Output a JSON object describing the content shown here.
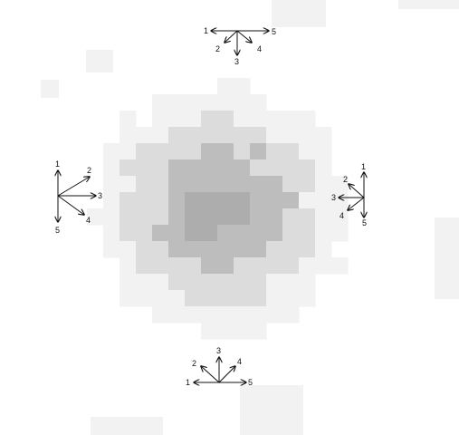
{
  "colors": {
    "arrow": "#111111",
    "blob_light": "#f2f2f2",
    "blob_mid": "#dcdcdc",
    "blob_dark": "#bdbdbd",
    "blob_core": "#adadad"
  },
  "arrow_groups": [
    {
      "id": "top",
      "arrows": [
        {
          "label": "1"
        },
        {
          "label": "2"
        },
        {
          "label": "3"
        },
        {
          "label": "4"
        },
        {
          "label": "5"
        }
      ]
    },
    {
      "id": "left",
      "arrows": [
        {
          "label": "1"
        },
        {
          "label": "2"
        },
        {
          "label": "3"
        },
        {
          "label": "4"
        },
        {
          "label": "5"
        }
      ]
    },
    {
      "id": "right",
      "arrows": [
        {
          "label": "1"
        },
        {
          "label": "2"
        },
        {
          "label": "3"
        },
        {
          "label": "4"
        },
        {
          "label": "5"
        }
      ]
    },
    {
      "id": "bottom",
      "arrows": [
        {
          "label": "1"
        },
        {
          "label": "2"
        },
        {
          "label": "3"
        },
        {
          "label": "4"
        },
        {
          "label": "5"
        }
      ]
    }
  ]
}
